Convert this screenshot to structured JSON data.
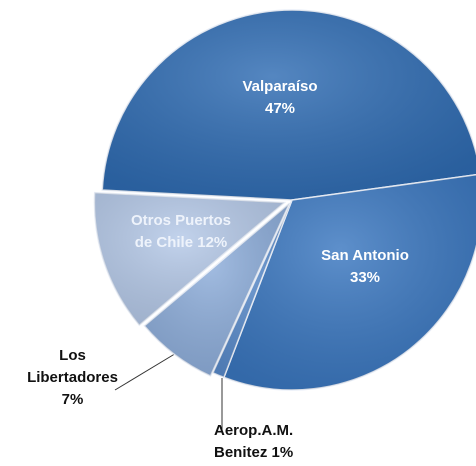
{
  "chart_data": {
    "type": "pie",
    "categories": [
      "Valparaíso",
      "San Antonio",
      "Aerop.A.M. Benitez",
      "Los Libertadores",
      "Otros Puertos de Chile"
    ],
    "values": [
      47,
      33,
      1,
      7,
      12
    ],
    "value_labels": [
      "47%",
      "33%",
      "1%",
      "7%",
      "12%"
    ],
    "colors": [
      "#2f6cb3",
      "#3a77c0",
      "#5a8ccc",
      "#8eaedb",
      "#b5c9e8"
    ]
  }
}
